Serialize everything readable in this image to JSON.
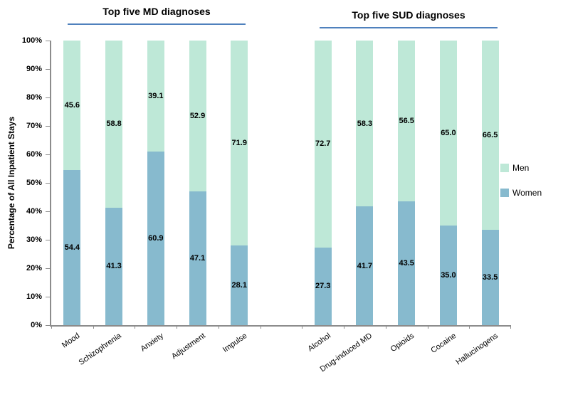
{
  "chart_data": {
    "type": "bar",
    "stacked": true,
    "title": "",
    "ylabel": "Percentage of All Inpatient Stays",
    "xlabel": "",
    "ylim": [
      0,
      100
    ],
    "grid": false,
    "yticks": [
      "0%",
      "10%",
      "20%",
      "30%",
      "40%",
      "50%",
      "60%",
      "70%",
      "80%",
      "90%",
      "100%"
    ],
    "group_headers": [
      {
        "label": "Top five MD diagnoses"
      },
      {
        "label": "Top five SUD diagnoses"
      }
    ],
    "categories": [
      "Mood",
      "Schizophrenia",
      "Anxiety",
      "Adjustment",
      "Impulse",
      "Alcohol",
      "Drug-induced MD",
      "Opioids",
      "Cocaine",
      "Hallucinogens"
    ],
    "gap_after_index": 4,
    "series": [
      {
        "name": "Women",
        "color": "#87BACE",
        "values": [
          54.4,
          41.3,
          60.9,
          47.1,
          28.1,
          27.3,
          41.7,
          43.5,
          35.0,
          33.5
        ]
      },
      {
        "name": "Men",
        "color": "#BEE8D7",
        "values": [
          45.6,
          58.8,
          39.1,
          52.9,
          71.9,
          72.7,
          58.3,
          56.5,
          65.0,
          66.5
        ]
      }
    ],
    "legend": {
      "position": "right",
      "entries": [
        {
          "label": "Men",
          "color": "#BEE8D7"
        },
        {
          "label": "Women",
          "color": "#87BACE"
        }
      ]
    },
    "accent_line_color": "#4F81BD",
    "axis_color": "#8C8C8C"
  }
}
